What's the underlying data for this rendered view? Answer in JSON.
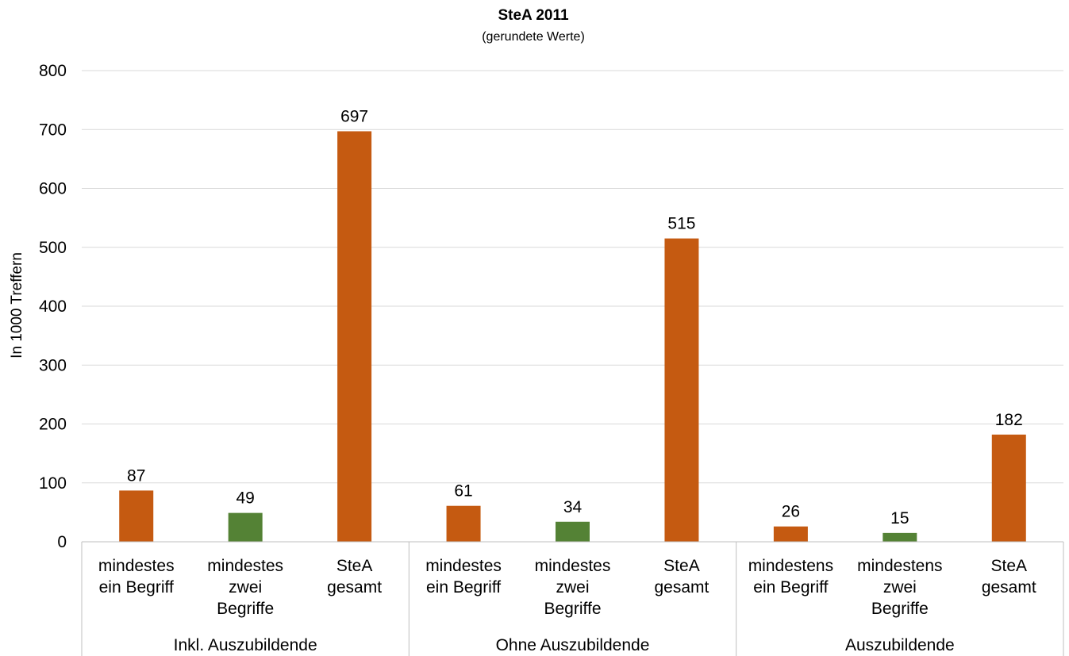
{
  "chart_data": {
    "type": "bar",
    "title": "SteA 2011",
    "subtitle": "(gerundete Werte)",
    "ylabel": "In 1000 Treffern",
    "xlabel": "",
    "ylim": [
      0,
      800
    ],
    "yticks": [
      "0",
      "100",
      "200",
      "300",
      "400",
      "500",
      "600",
      "700",
      "800"
    ],
    "grid": true,
    "colors": {
      "orange": "#C55A11",
      "green": "#548235",
      "grid": "#D9D9D9",
      "axis": "#BFBFBF"
    },
    "groups": [
      {
        "name": "Inkl. Auszubildende",
        "bars": [
          {
            "label": [
              "mindestes",
              "ein Begriff"
            ],
            "value": 87,
            "color": "orange"
          },
          {
            "label": [
              "mindestes",
              "zwei",
              "Begriffe"
            ],
            "value": 49,
            "color": "green"
          },
          {
            "label": [
              "SteA",
              "gesamt"
            ],
            "value": 697,
            "color": "orange"
          }
        ]
      },
      {
        "name": "Ohne Auszubildende",
        "bars": [
          {
            "label": [
              "mindestes",
              "ein Begriff"
            ],
            "value": 61,
            "color": "orange"
          },
          {
            "label": [
              "mindestes",
              "zwei",
              "Begriffe"
            ],
            "value": 34,
            "color": "green"
          },
          {
            "label": [
              "SteA",
              "gesamt"
            ],
            "value": 515,
            "color": "orange"
          }
        ]
      },
      {
        "name": "Auszubildende",
        "bars": [
          {
            "label": [
              "mindestens",
              "ein Begriff"
            ],
            "value": 26,
            "color": "orange"
          },
          {
            "label": [
              "mindestens",
              "zwei",
              "Begriffe"
            ],
            "value": 15,
            "color": "green"
          },
          {
            "label": [
              "SteA",
              "gesamt"
            ],
            "value": 182,
            "color": "orange"
          }
        ]
      }
    ]
  }
}
